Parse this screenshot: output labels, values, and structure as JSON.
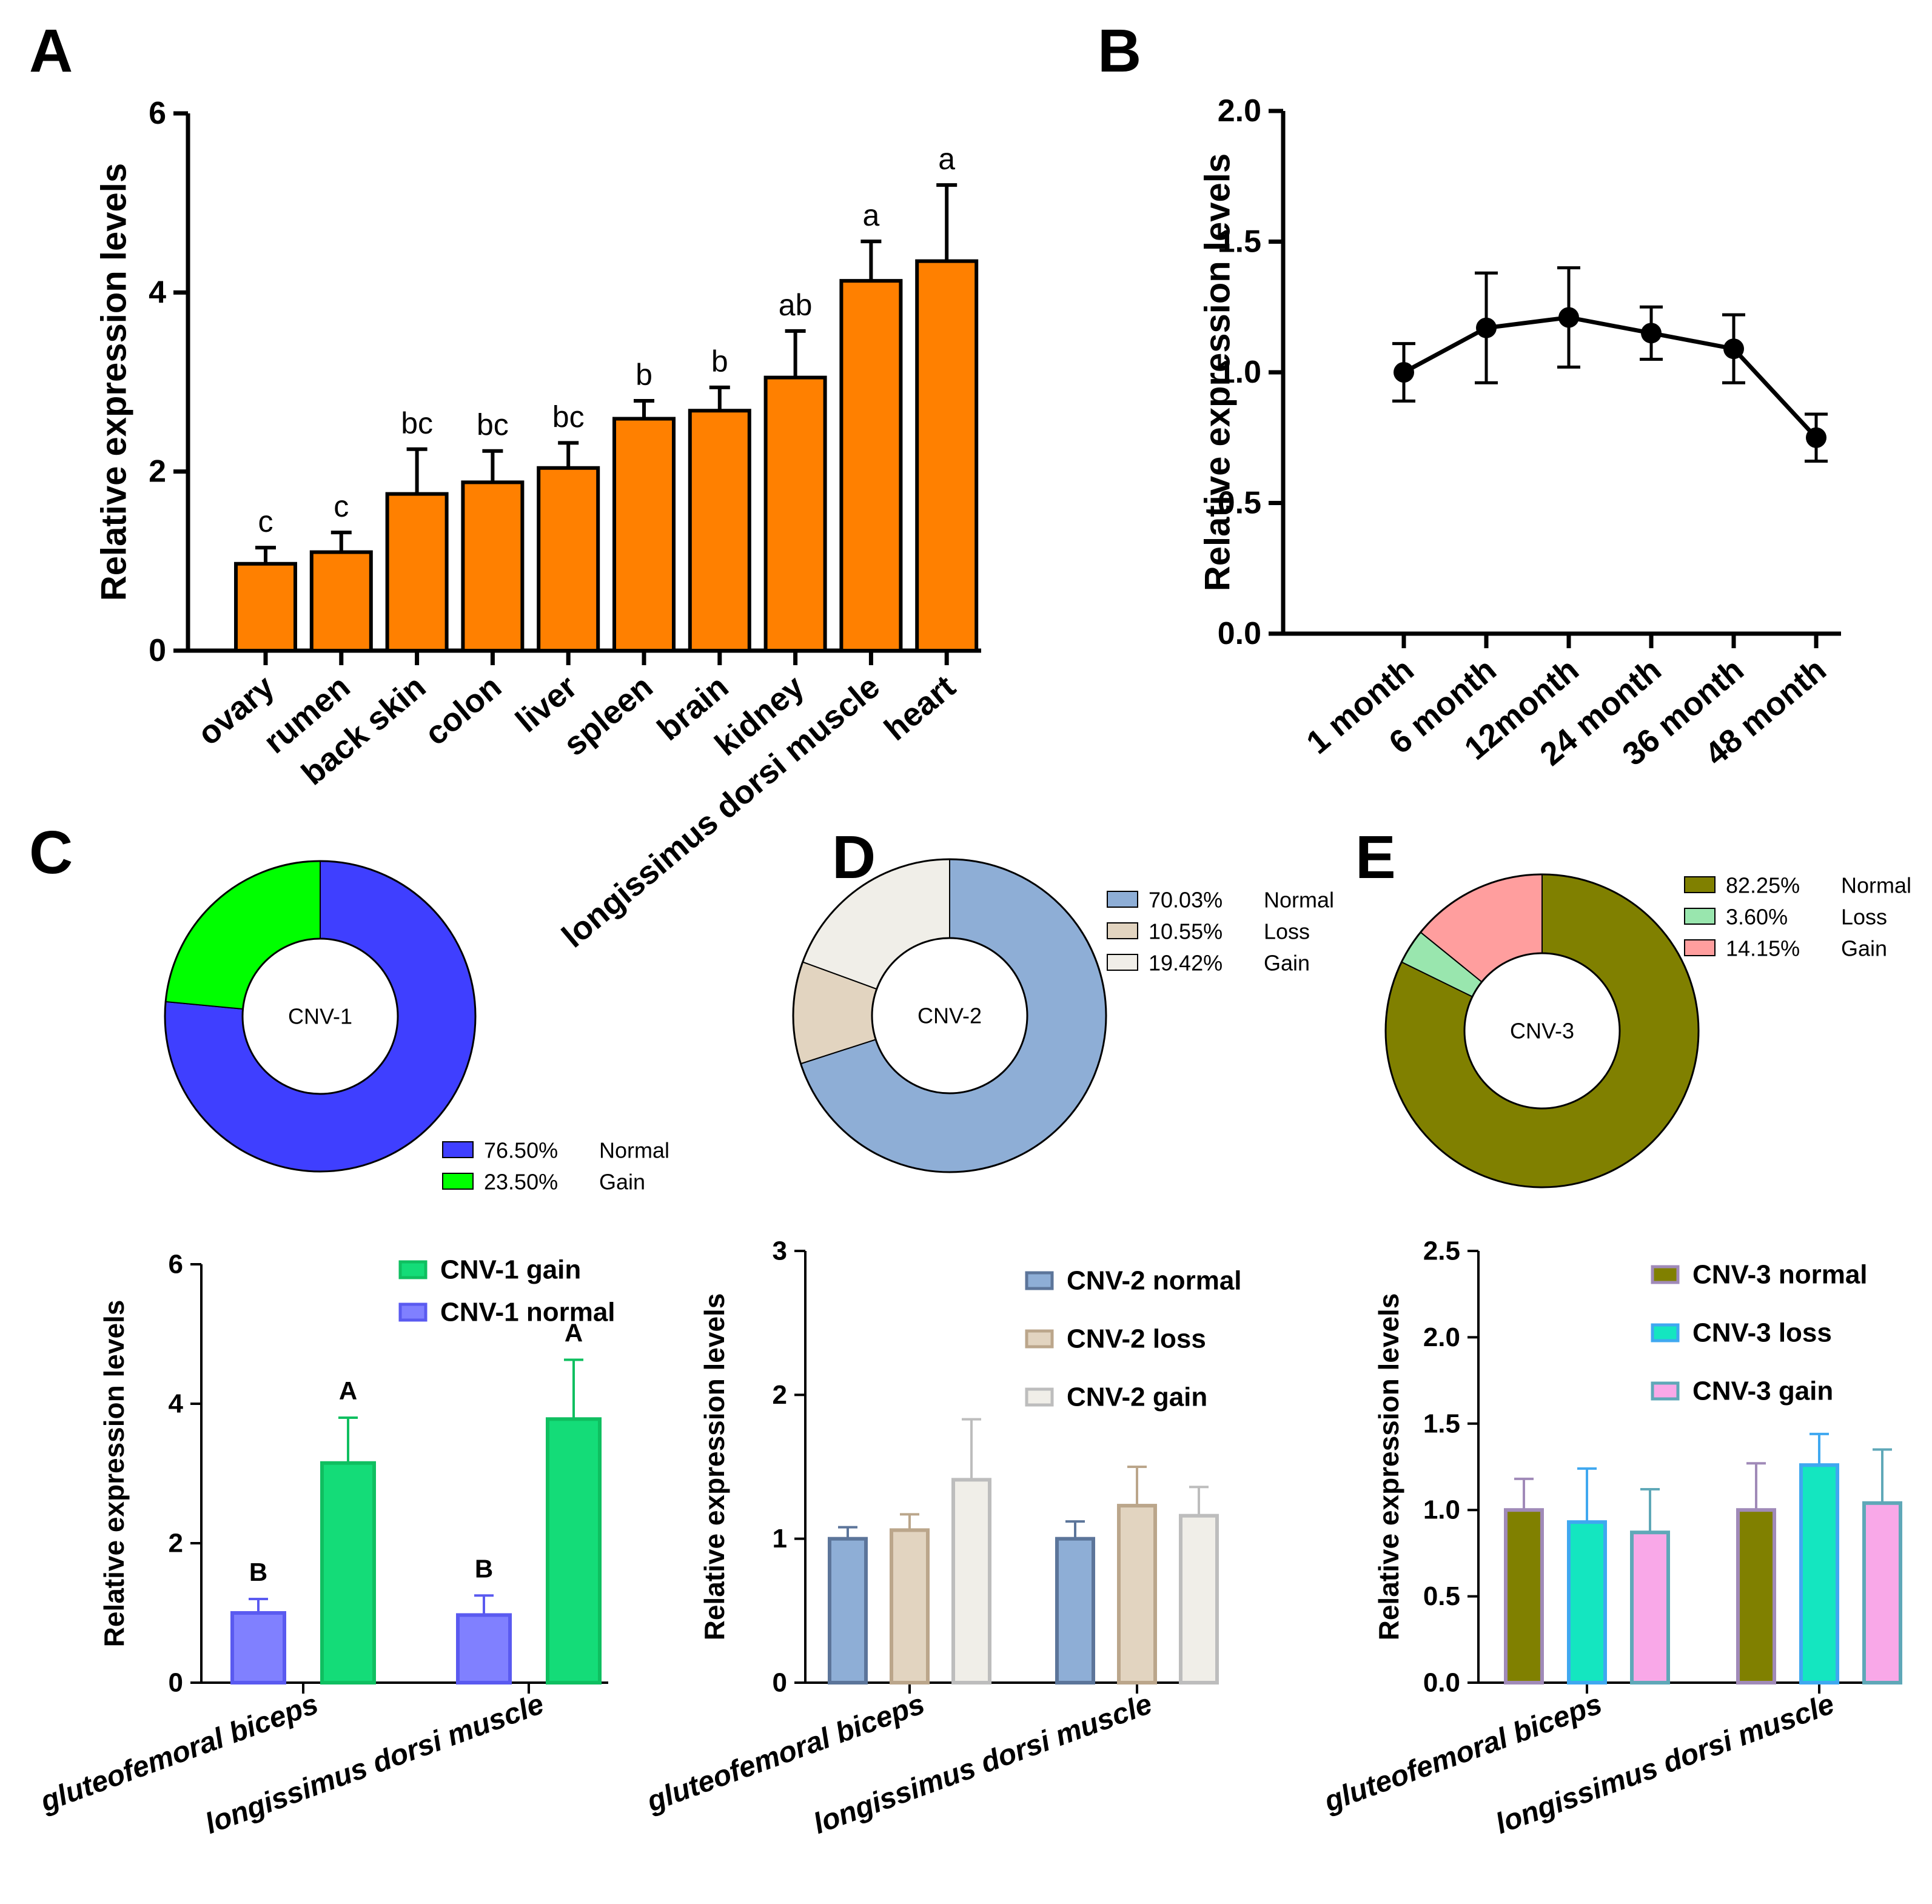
{
  "panels": {
    "A": "A",
    "B": "B",
    "C": "C",
    "D": "D",
    "E": "E"
  },
  "chart_data": [
    {
      "id": "A",
      "type": "bar",
      "title": "",
      "xlabel": "",
      "ylabel": "Relative expression levels",
      "ylim": [
        0,
        6
      ],
      "yticks": [
        0,
        2,
        4,
        6
      ],
      "color": "#FF8000",
      "categories": [
        "ovary",
        "rumen",
        "back skin",
        "colon",
        "liver",
        "spleen",
        "brain",
        "kidney",
        "longissimus dorsi muscle",
        "heart"
      ],
      "values": [
        0.97,
        1.1,
        1.75,
        1.88,
        2.04,
        2.59,
        2.68,
        3.05,
        4.13,
        4.35
      ],
      "errors": [
        0.18,
        0.22,
        0.5,
        0.35,
        0.28,
        0.2,
        0.26,
        0.52,
        0.44,
        0.85
      ],
      "significance": [
        "c",
        "c",
        "bc",
        "bc",
        "bc",
        "b",
        "b",
        "ab",
        "a",
        "a"
      ]
    },
    {
      "id": "B",
      "type": "line",
      "title": "",
      "xlabel": "",
      "ylabel": "Relative expression levels",
      "ylim": [
        0,
        2
      ],
      "yticks": [
        0.0,
        0.5,
        1.0,
        1.5,
        2.0
      ],
      "ytick_labels": [
        "0.0",
        "0.5",
        "1.0",
        "1.5",
        "2.0"
      ],
      "categories": [
        "1 month",
        "6 month",
        "12month",
        "24 month",
        "36 month",
        "48 month"
      ],
      "values": [
        1.0,
        1.17,
        1.21,
        1.15,
        1.09,
        0.75
      ],
      "errors": [
        0.11,
        0.21,
        0.19,
        0.1,
        0.13,
        0.09
      ]
    },
    {
      "id": "C_pie",
      "type": "pie",
      "center_label": "CNV-1",
      "slices": [
        {
          "pct": "76.50%",
          "name": "Normal",
          "value": 76.5,
          "color": "#3F3FFF"
        },
        {
          "pct": "23.50%",
          "name": "Gain",
          "value": 23.5,
          "color": "#00FF00"
        }
      ],
      "legend_position": "bottom-right"
    },
    {
      "id": "D_pie",
      "type": "pie",
      "center_label": "CNV-2",
      "slices": [
        {
          "pct": "70.03%",
          "name": "Normal",
          "value": 70.03,
          "color": "#8EAED6"
        },
        {
          "pct": "10.55%",
          "name": "Loss",
          "value": 10.55,
          "color": "#E2D4C0"
        },
        {
          "pct": "19.42%",
          "name": "Gain",
          "value": 19.42,
          "color": "#F0EEE8"
        }
      ],
      "legend_position": "top-right"
    },
    {
      "id": "E_pie",
      "type": "pie",
      "center_label": "CNV-3",
      "slices": [
        {
          "pct": "82.25%",
          "name": "Normal",
          "value": 82.25,
          "color": "#808000"
        },
        {
          "pct": "3.60%",
          "name": "Loss",
          "value": 3.6,
          "color": "#99E6AE"
        },
        {
          "pct": "14.15%",
          "name": "Gain",
          "value": 14.15,
          "color": "#FF9E9E"
        }
      ],
      "legend_position": "top-right"
    },
    {
      "id": "C_bar",
      "type": "bar",
      "ylabel": "Relative expression levels",
      "ylim": [
        0,
        6
      ],
      "yticks": [
        0,
        2,
        4,
        6
      ],
      "categories": [
        "gluteofemoral biceps",
        "longissimus dorsi muscle"
      ],
      "series": [
        {
          "name": "CNV-1 normal",
          "values": [
            1.0,
            0.97
          ],
          "errors": [
            0.2,
            0.28
          ],
          "labels": [
            "B",
            "B"
          ],
          "fill": "#8080FF",
          "stroke": "#5A5AF0"
        },
        {
          "name": "CNV-1 gain",
          "values": [
            3.15,
            3.78
          ],
          "errors": [
            0.65,
            0.85
          ],
          "labels": [
            "A",
            "A"
          ],
          "fill": "#14DC78",
          "stroke": "#0FBF60"
        }
      ],
      "legend": [
        "CNV-1 gain",
        "CNV-1 normal"
      ]
    },
    {
      "id": "D_bar",
      "type": "bar",
      "ylabel": "Relative expression levels",
      "ylim": [
        0,
        3
      ],
      "yticks": [
        0,
        1,
        2,
        3
      ],
      "categories": [
        "gluteofemoral biceps",
        "longissimus dorsi muscle"
      ],
      "series": [
        {
          "name": "CNV-2 normal",
          "values": [
            1.0,
            1.0
          ],
          "errors": [
            0.08,
            0.12
          ],
          "fill": "#8EAED6",
          "stroke": "#5C759A"
        },
        {
          "name": "CNV-2 loss",
          "values": [
            1.06,
            1.23
          ],
          "errors": [
            0.11,
            0.27
          ],
          "fill": "#E2D4C0",
          "stroke": "#BBA68B"
        },
        {
          "name": "CNV-2 gain",
          "values": [
            1.41,
            1.16
          ],
          "errors": [
            0.42,
            0.2
          ],
          "fill": "#F0EEE8",
          "stroke": "#BDBDBD"
        }
      ],
      "legend": [
        "CNV-2 normal",
        "CNV-2 loss",
        "CNV-2 gain"
      ]
    },
    {
      "id": "E_bar",
      "type": "bar",
      "ylabel": "Relative expression levels",
      "ylim": [
        0,
        2.5
      ],
      "yticks": [
        0.0,
        0.5,
        1.0,
        1.5,
        2.0,
        2.5
      ],
      "ytick_labels": [
        "0.0",
        "0.5",
        "1.0",
        "1.5",
        "2.0",
        "2.5"
      ],
      "categories": [
        "gluteofemoral biceps",
        "longissimus dorsi muscle"
      ],
      "series": [
        {
          "name": "CNV-3 normal",
          "values": [
            1.0,
            1.0
          ],
          "errors": [
            0.18,
            0.27
          ],
          "fill": "#808000",
          "stroke": "#A08AB8"
        },
        {
          "name": "CNV-3 loss",
          "values": [
            0.93,
            1.26
          ],
          "errors": [
            0.31,
            0.18
          ],
          "fill": "#14E6C0",
          "stroke": "#3FA8F0"
        },
        {
          "name": "CNV-3 gain",
          "values": [
            0.87,
            1.04
          ],
          "errors": [
            0.25,
            0.31
          ],
          "fill": "#F9A8E8",
          "stroke": "#5FA8B8"
        }
      ],
      "legend": [
        "CNV-3 normal",
        "CNV-3 loss",
        "CNV-3 gain"
      ]
    }
  ]
}
